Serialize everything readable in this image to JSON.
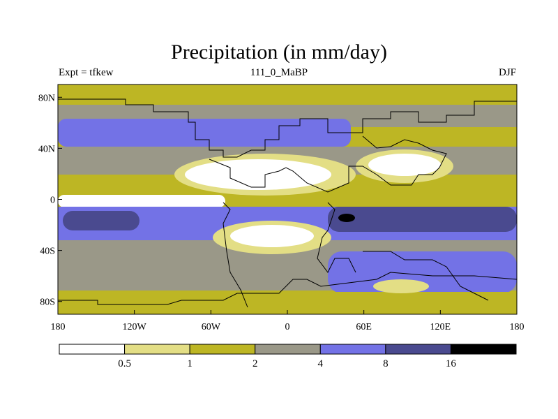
{
  "title": "Precipitation (in mm/day)",
  "left_label": "Expt = tfkew",
  "center_label": "111_0_MaBP",
  "right_label": "DJF",
  "colors": {
    "lt05": "#ffffff",
    "c05_1": "#e3de85",
    "c1_2": "#bdb624",
    "c2_4": "#9a9888",
    "c4_8": "#7372e6",
    "c8_16": "#4a4a8f",
    "gt16": "#000000"
  },
  "chart_data": {
    "type": "heatmap",
    "x_axis": {
      "ticks": [
        "180",
        "120W",
        "60W",
        "0",
        "60E",
        "120E",
        "180"
      ],
      "range": [
        -180,
        180
      ]
    },
    "y_axis": {
      "ticks": [
        "80N",
        "40N",
        "0",
        "40S",
        "80S"
      ],
      "range": [
        -90,
        90
      ]
    },
    "colorbar": {
      "labels": [
        "0.5",
        "1",
        "2",
        "4",
        "8",
        "16"
      ],
      "levels": [
        0.5,
        1,
        2,
        4,
        8,
        16
      ]
    }
  }
}
